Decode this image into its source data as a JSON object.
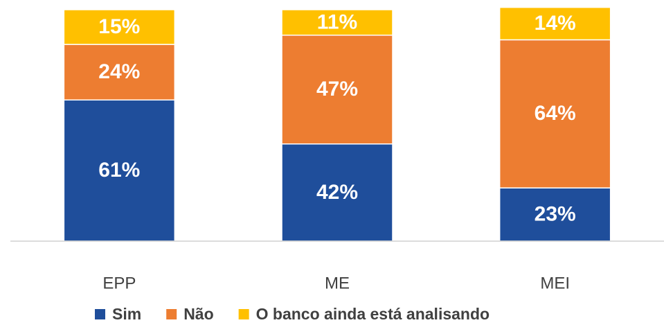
{
  "chart_data": {
    "type": "stacked_bar",
    "categories": [
      "EPP",
      "ME",
      "MEI"
    ],
    "series": [
      {
        "name": "Sim",
        "color": "#1F4E9B",
        "values": [
          61,
          42,
          23
        ],
        "value_labels": [
          "61%",
          "42%",
          "23%"
        ]
      },
      {
        "name": "Não",
        "color": "#ED7D31",
        "values": [
          24,
          47,
          64
        ],
        "value_labels": [
          "24%",
          "47%",
          "64%"
        ]
      },
      {
        "name": "O banco ainda está analisando",
        "color": "#FFC000",
        "values": [
          15,
          11,
          14
        ],
        "value_labels": [
          "15%",
          "11%",
          "14%"
        ]
      }
    ],
    "ylim": [
      0,
      100
    ],
    "legend": "bottom"
  }
}
